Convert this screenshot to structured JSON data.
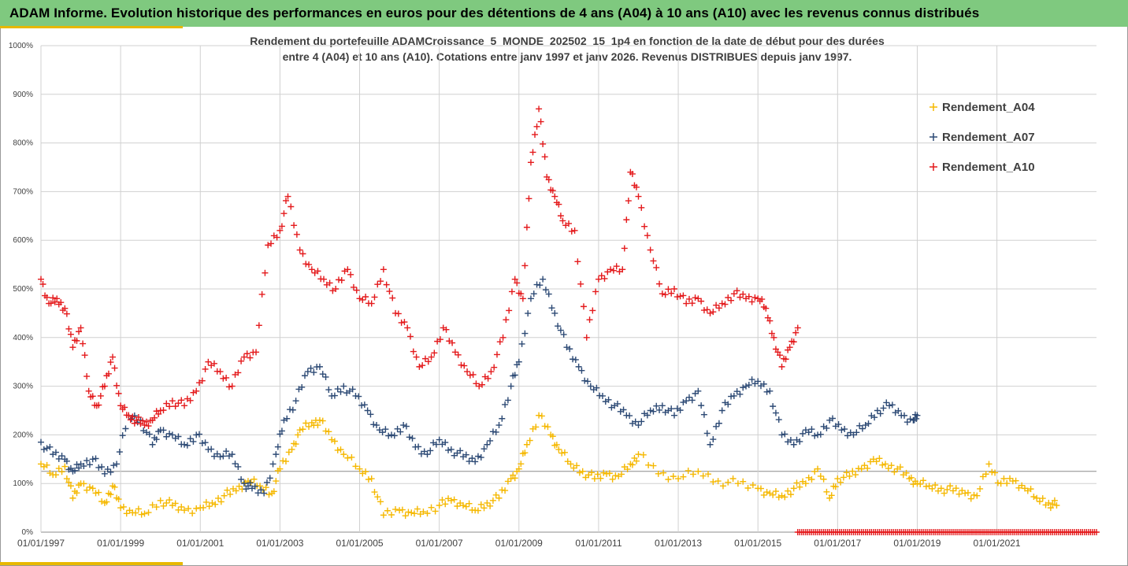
{
  "header": {
    "title": "ADAM Informe. Evolution historique des performances en euros pour des détentions de 4 ans (A04) à 10 ans (A10) avec les revenus connus distribués"
  },
  "chart_data": {
    "type": "scatter",
    "subtitle_line1": "Rendement du portefeuille ADAMCroissance_5_MONDE_202502_15_1p4  en fonction de la date de début pour des durées",
    "subtitle_line2": "entre 4 (A04) et 10 ans (A10). Cotations entre janv 1997 et janv 2026. Revenus DISTRIBUES depuis janv 1997.",
    "y_axis": {
      "min": 0,
      "max": 1000,
      "step": 100,
      "format": "percent"
    },
    "x_axis": {
      "min": 1997.0,
      "max": 2023.5
    },
    "x_ticks": [
      "01/01/1997",
      "01/01/1999",
      "01/01/2001",
      "01/01/2003",
      "01/01/2005",
      "01/01/2007",
      "01/01/2009",
      "01/01/2011",
      "01/01/2013",
      "01/01/2015",
      "01/01/2017",
      "01/01/2019",
      "01/01/2021"
    ],
    "grid": true,
    "legend": {
      "position": "right"
    },
    "series": [
      {
        "name": "Rendement_A04",
        "color": "#f5b800",
        "x": [
          1997.0,
          1997.3,
          1997.6,
          1997.8,
          1998.0,
          1998.3,
          1998.6,
          1998.8,
          1999.0,
          1999.3,
          1999.6,
          2000.0,
          2000.3,
          2000.6,
          2001.0,
          2001.3,
          2001.6,
          2001.9,
          2002.2,
          2002.5,
          2002.8,
          2003.0,
          2003.3,
          2003.5,
          2003.8,
          2004.0,
          2004.3,
          2004.6,
          2005.0,
          2005.3,
          2005.6,
          2006.0,
          2006.3,
          2006.6,
          2007.0,
          2007.3,
          2007.6,
          2007.9,
          2008.2,
          2008.5,
          2008.8,
          2009.0,
          2009.2,
          2009.5,
          2009.8,
          2010.0,
          2010.3,
          2010.6,
          2010.9,
          2011.2,
          2011.5,
          2011.8,
          2012.0,
          2012.5,
          2013.0,
          2013.5,
          2014.0,
          2014.5,
          2015.0,
          2015.3,
          2015.6,
          2015.9,
          2016.2,
          2016.5,
          2016.8,
          2017.0,
          2017.3,
          2017.6,
          2017.9,
          2018.2,
          2018.5,
          2018.8,
          2019.0,
          2019.3,
          2019.6,
          2019.9,
          2020.2,
          2020.5,
          2020.8,
          2021.1,
          2021.4,
          2021.7,
          2022.0,
          2022.3,
          2022.5
        ],
        "y": [
          140,
          118,
          135,
          70,
          100,
          90,
          60,
          95,
          50,
          40,
          38,
          65,
          55,
          45,
          50,
          60,
          75,
          85,
          105,
          95,
          80,
          130,
          170,
          210,
          225,
          230,
          190,
          160,
          130,
          110,
          35,
          45,
          40,
          42,
          55,
          65,
          55,
          45,
          60,
          70,
          110,
          130,
          180,
          240,
          200,
          170,
          140,
          125,
          110,
          120,
          115,
          140,
          160,
          120,
          110,
          125,
          105,
          100,
          90,
          80,
          75,
          90,
          100,
          130,
          70,
          110,
          115,
          130,
          150,
          140,
          130,
          110,
          100,
          95,
          90,
          85,
          80,
          75,
          140,
          100,
          105,
          90,
          70,
          60,
          55
        ]
      },
      {
        "name": "Rendement_A07",
        "color": "#2d4a75",
        "x": [
          1997.0,
          1997.3,
          1997.6,
          1997.8,
          1998.0,
          1998.3,
          1998.6,
          1998.9,
          1999.2,
          1999.5,
          1999.8,
          2000.0,
          2000.3,
          2000.6,
          2000.9,
          2001.2,
          2001.5,
          2001.8,
          2002.1,
          2002.3,
          2002.6,
          2002.9,
          2003.1,
          2003.4,
          2003.7,
          2004.0,
          2004.3,
          2004.6,
          2004.9,
          2005.2,
          2005.5,
          2005.8,
          2006.1,
          2006.4,
          2006.7,
          2007.0,
          2007.3,
          2007.6,
          2007.9,
          2008.2,
          2008.5,
          2008.8,
          2009.0,
          2009.3,
          2009.6,
          2009.9,
          2010.2,
          2010.5,
          2010.8,
          2011.1,
          2011.4,
          2011.7,
          2012.0,
          2012.3,
          2012.6,
          2012.9,
          2013.2,
          2013.5,
          2013.8,
          2014.1,
          2014.4,
          2014.7,
          2015.0,
          2015.3,
          2015.6,
          2015.9,
          2016.2,
          2016.5,
          2016.8,
          2017.1,
          2017.4,
          2017.7,
          2018.0,
          2018.3,
          2018.6,
          2018.9,
          2019.0
        ],
        "y": [
          185,
          160,
          150,
          125,
          140,
          150,
          120,
          140,
          240,
          230,
          180,
          210,
          200,
          180,
          200,
          170,
          155,
          160,
          100,
          90,
          80,
          160,
          230,
          270,
          330,
          340,
          280,
          300,
          280,
          250,
          210,
          200,
          220,
          175,
          160,
          190,
          170,
          155,
          145,
          180,
          220,
          300,
          350,
          480,
          520,
          450,
          380,
          340,
          300,
          280,
          260,
          240,
          220,
          250,
          260,
          240,
          270,
          290,
          180,
          250,
          280,
          300,
          310,
          290,
          200,
          180,
          210,
          200,
          230,
          210,
          200,
          220,
          250,
          260,
          240,
          230,
          240
        ]
      },
      {
        "name": "Rendement_A10",
        "color": "#e41a1c",
        "x": [
          1997.0,
          1997.2,
          1997.4,
          1997.6,
          1997.8,
          1998.0,
          1998.2,
          1998.4,
          1998.6,
          1998.8,
          1999.0,
          1999.2,
          1999.4,
          1999.6,
          1999.8,
          2000.0,
          2000.3,
          2000.6,
          2000.9,
          2001.2,
          2001.5,
          2001.8,
          2002.1,
          2002.4,
          2002.7,
          2003.0,
          2003.2,
          2003.5,
          2003.8,
          2004.1,
          2004.4,
          2004.7,
          2005.0,
          2005.3,
          2005.6,
          2005.9,
          2006.2,
          2006.5,
          2006.8,
          2007.1,
          2007.4,
          2007.7,
          2008.0,
          2008.3,
          2008.6,
          2008.9,
          2009.1,
          2009.3,
          2009.5,
          2009.7,
          2009.9,
          2010.1,
          2010.4,
          2010.7,
          2011.0,
          2011.3,
          2011.6,
          2011.8,
          2012.0,
          2012.3,
          2012.6,
          2012.9,
          2013.2,
          2013.5,
          2013.8,
          2014.1,
          2014.4,
          2014.7,
          2015.0,
          2015.2,
          2015.4,
          2015.6,
          2015.8,
          2016.0
        ],
        "y": [
          520,
          470,
          480,
          460,
          380,
          420,
          290,
          260,
          300,
          360,
          260,
          240,
          230,
          220,
          230,
          250,
          270,
          260,
          290,
          350,
          330,
          300,
          360,
          370,
          590,
          620,
          690,
          580,
          540,
          520,
          500,
          540,
          480,
          470,
          540,
          450,
          420,
          340,
          360,
          420,
          370,
          330,
          300,
          330,
          400,
          520,
          480,
          760,
          870,
          730,
          690,
          640,
          620,
          400,
          520,
          540,
          540,
          740,
          690,
          580,
          490,
          500,
          470,
          480,
          450,
          470,
          490,
          480,
          480,
          460,
          400,
          340,
          380,
          420
        ]
      }
    ],
    "flat_series": {
      "color": "#e41a1c",
      "x_start": 2016.0,
      "x_end": 2023.5,
      "y": 0
    }
  }
}
